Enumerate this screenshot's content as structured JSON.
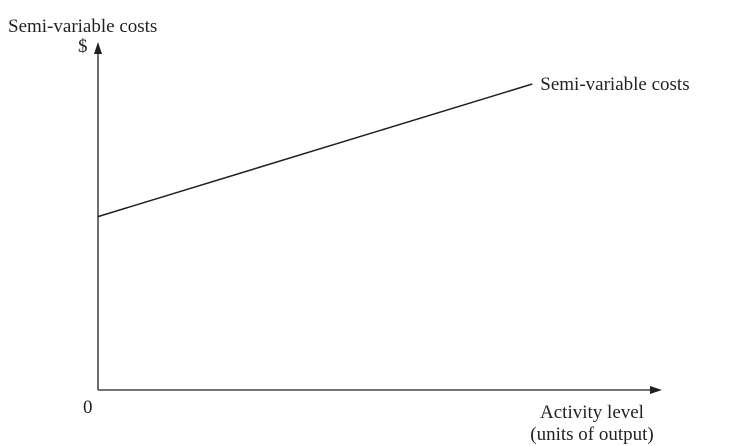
{
  "chart_data": {
    "type": "line",
    "title": "Semi-variable costs",
    "ylabel": "$",
    "xlabel_line1": "Activity level",
    "xlabel_line2": "(units of output)",
    "origin_label": "0",
    "grid": false,
    "xlim": [
      0,
      100
    ],
    "ylim": [
      0,
      100
    ],
    "series": [
      {
        "name": "Semi-variable costs",
        "x": [
          0,
          77
        ],
        "y": [
          51,
          90
        ]
      }
    ]
  }
}
